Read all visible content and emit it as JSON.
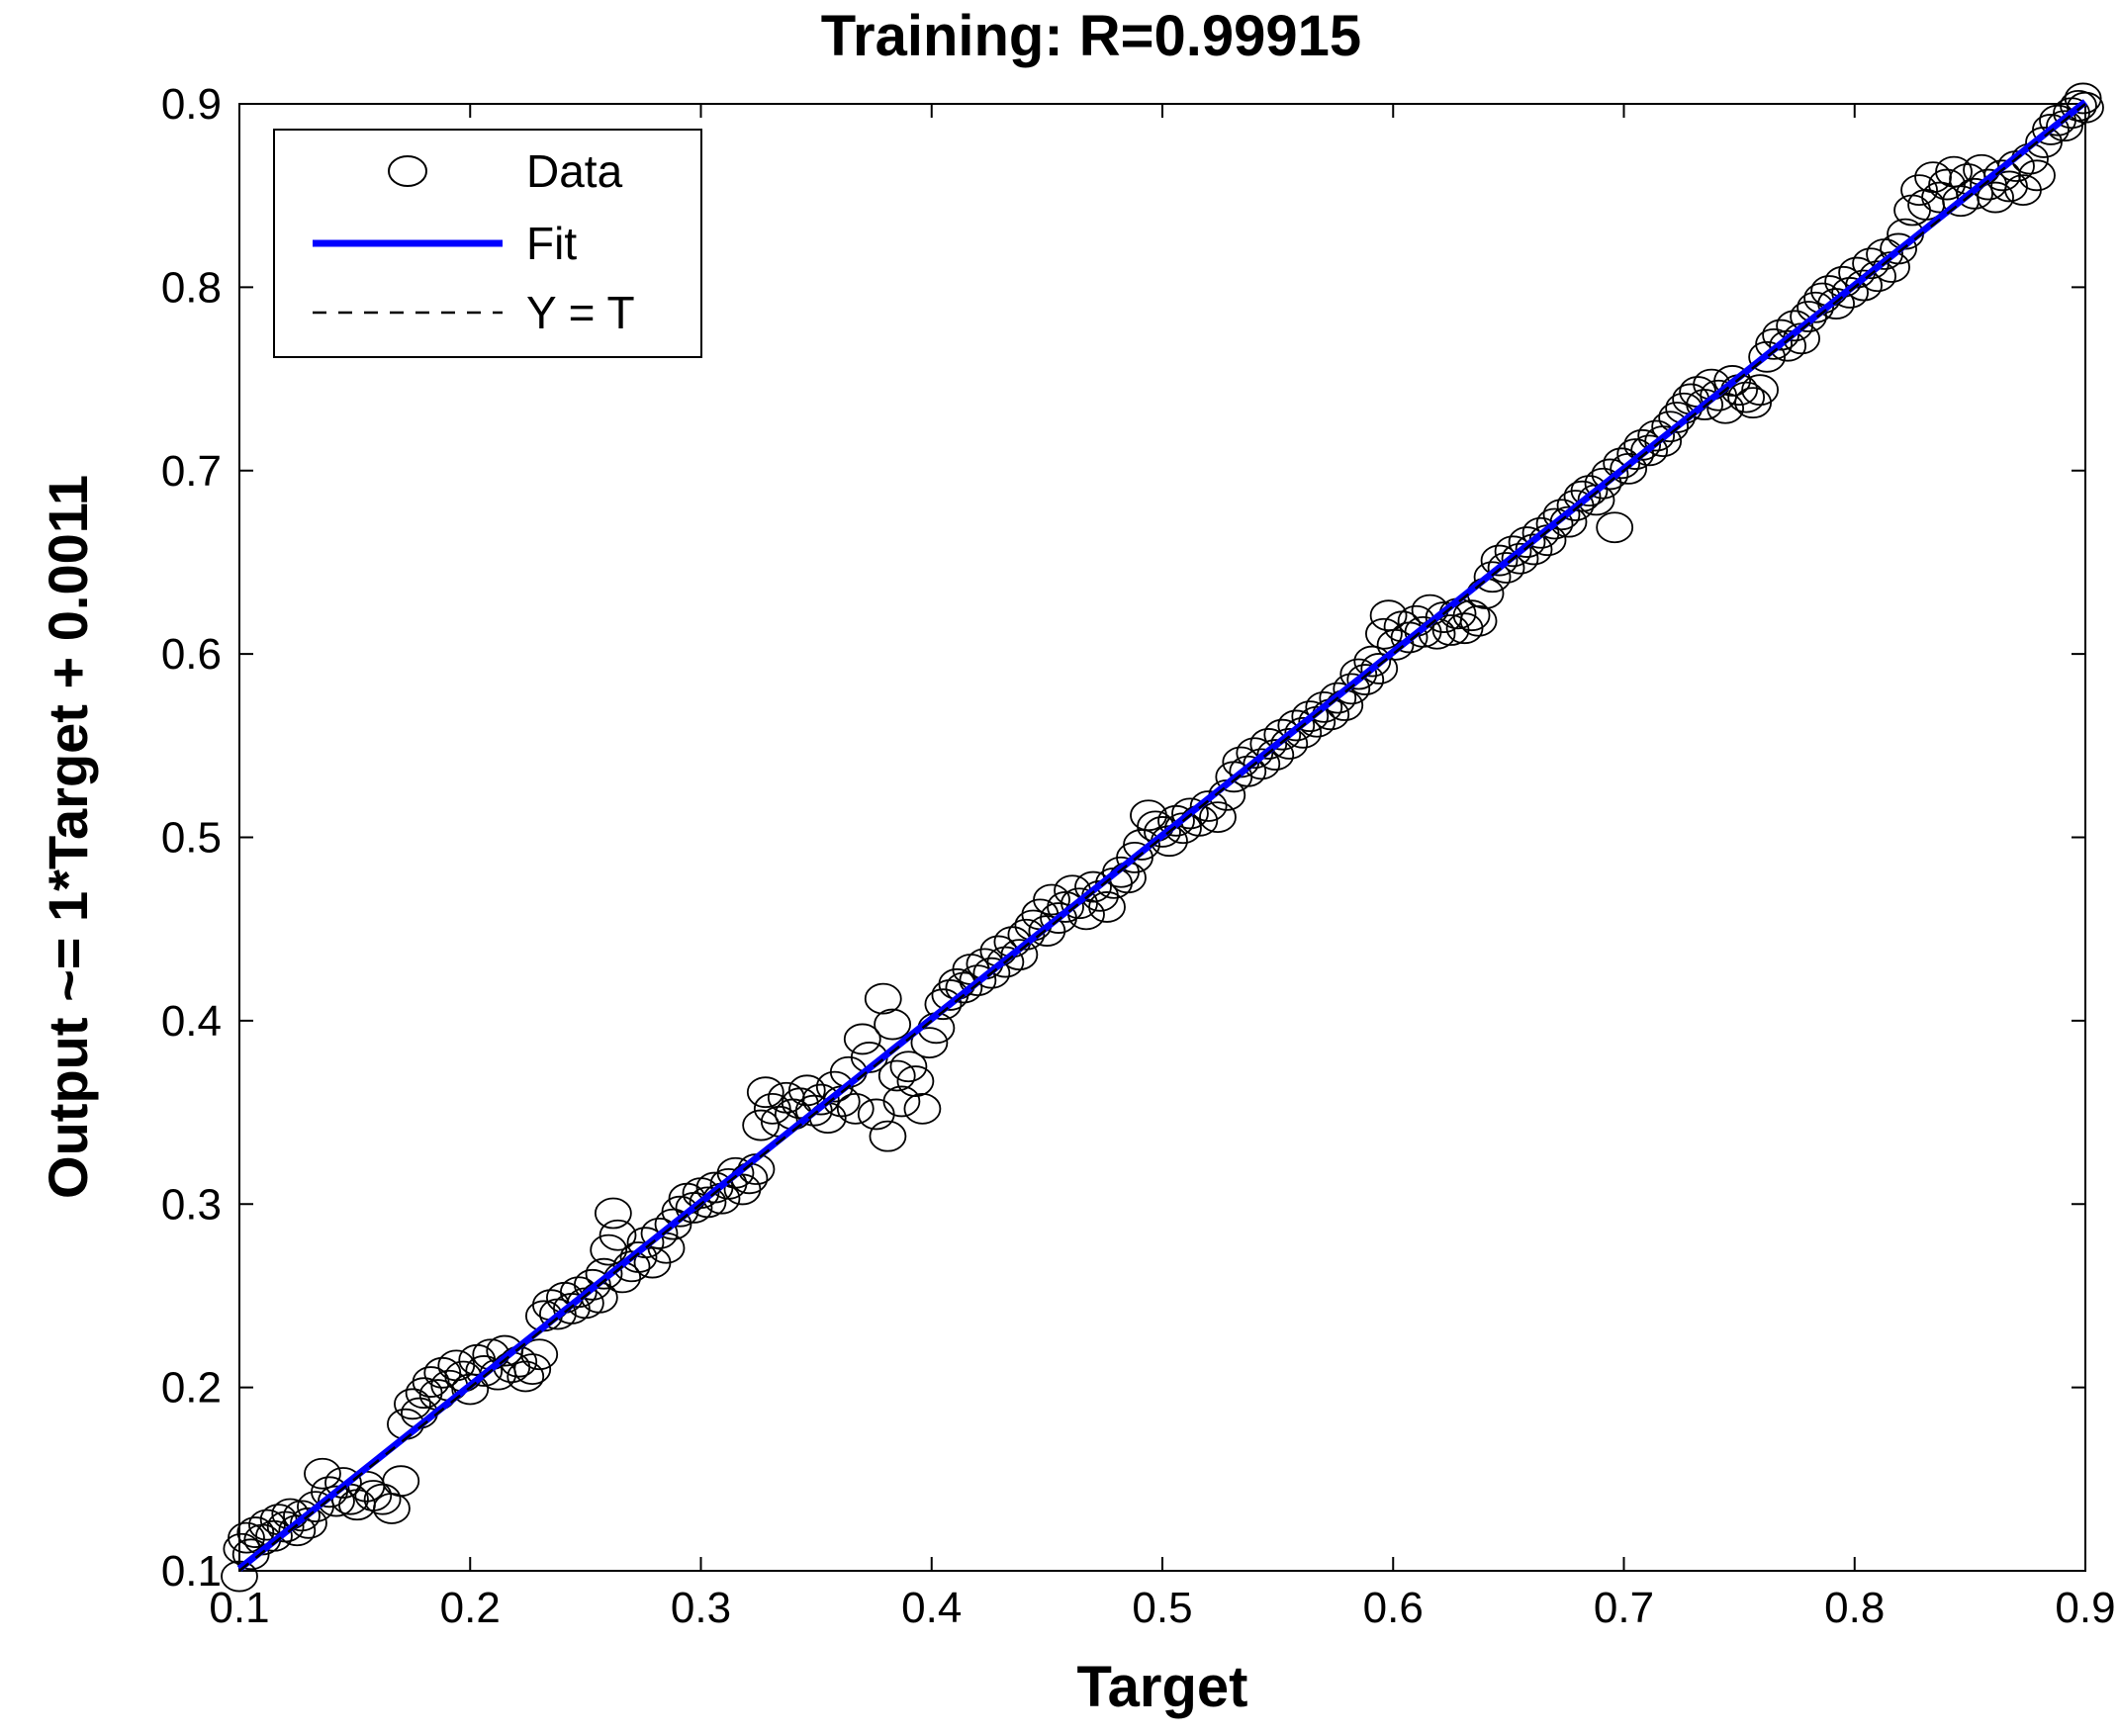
{
  "chart_data": {
    "type": "scatter",
    "title": "Training: R=0.99915",
    "xlabel": "Target",
    "ylabel": "Output ~= 1*Target + 0.0011",
    "xlim": [
      0.1,
      0.9
    ],
    "ylim": [
      0.1,
      0.9
    ],
    "x_ticks": [
      "0.1",
      "0.2",
      "0.3",
      "0.4",
      "0.5",
      "0.6",
      "0.7",
      "0.8",
      "0.9"
    ],
    "y_ticks": [
      "0.1",
      "0.2",
      "0.3",
      "0.4",
      "0.5",
      "0.6",
      "0.7",
      "0.8",
      "0.9"
    ],
    "grid": false,
    "legend": {
      "placement": "top-left",
      "entries": [
        {
          "label": "Data",
          "marker": "circle",
          "color": "#000000"
        },
        {
          "label": "Fit",
          "line": "solid",
          "color": "#0000ff"
        },
        {
          "label": "Y = T",
          "line": "dashed",
          "color": "#000000"
        }
      ]
    },
    "fit": {
      "slope": 1,
      "intercept": 0.0011,
      "color": "#0000ff"
    },
    "identity_line": {
      "color": "#000000",
      "style": "dashed"
    },
    "marker_color": "#000000",
    "series": [
      {
        "name": "Data",
        "points": [
          [
            0.1,
            0.097
          ],
          [
            0.101,
            0.112
          ],
          [
            0.103,
            0.118
          ],
          [
            0.105,
            0.109
          ],
          [
            0.107,
            0.121
          ],
          [
            0.11,
            0.117
          ],
          [
            0.112,
            0.125
          ],
          [
            0.115,
            0.119
          ],
          [
            0.117,
            0.128
          ],
          [
            0.12,
            0.124
          ],
          [
            0.122,
            0.131
          ],
          [
            0.125,
            0.122
          ],
          [
            0.127,
            0.13
          ],
          [
            0.13,
            0.126
          ],
          [
            0.133,
            0.135
          ],
          [
            0.136,
            0.153
          ],
          [
            0.139,
            0.143
          ],
          [
            0.142,
            0.138
          ],
          [
            0.145,
            0.148
          ],
          [
            0.148,
            0.139
          ],
          [
            0.151,
            0.136
          ],
          [
            0.155,
            0.146
          ],
          [
            0.158,
            0.141
          ],
          [
            0.162,
            0.139
          ],
          [
            0.166,
            0.134
          ],
          [
            0.17,
            0.149
          ],
          [
            0.172,
            0.18
          ],
          [
            0.175,
            0.191
          ],
          [
            0.178,
            0.186
          ],
          [
            0.18,
            0.197
          ],
          [
            0.183,
            0.203
          ],
          [
            0.186,
            0.196
          ],
          [
            0.188,
            0.208
          ],
          [
            0.191,
            0.201
          ],
          [
            0.194,
            0.212
          ],
          [
            0.197,
            0.206
          ],
          [
            0.2,
            0.199
          ],
          [
            0.203,
            0.215
          ],
          [
            0.206,
            0.209
          ],
          [
            0.209,
            0.218
          ],
          [
            0.212,
            0.207
          ],
          [
            0.215,
            0.22
          ],
          [
            0.218,
            0.211
          ],
          [
            0.221,
            0.214
          ],
          [
            0.224,
            0.206
          ],
          [
            0.227,
            0.21
          ],
          [
            0.23,
            0.218
          ],
          [
            0.232,
            0.239
          ],
          [
            0.235,
            0.245
          ],
          [
            0.238,
            0.24
          ],
          [
            0.241,
            0.249
          ],
          [
            0.244,
            0.243
          ],
          [
            0.247,
            0.252
          ],
          [
            0.25,
            0.246
          ],
          [
            0.253,
            0.256
          ],
          [
            0.256,
            0.249
          ],
          [
            0.258,
            0.262
          ],
          [
            0.26,
            0.275
          ],
          [
            0.262,
            0.295
          ],
          [
            0.264,
            0.283
          ],
          [
            0.266,
            0.26
          ],
          [
            0.27,
            0.266
          ],
          [
            0.273,
            0.271
          ],
          [
            0.276,
            0.279
          ],
          [
            0.279,
            0.268
          ],
          [
            0.282,
            0.284
          ],
          [
            0.285,
            0.276
          ],
          [
            0.288,
            0.289
          ],
          [
            0.291,
            0.296
          ],
          [
            0.294,
            0.303
          ],
          [
            0.297,
            0.298
          ],
          [
            0.3,
            0.306
          ],
          [
            0.303,
            0.301
          ],
          [
            0.306,
            0.309
          ],
          [
            0.309,
            0.303
          ],
          [
            0.312,
            0.311
          ],
          [
            0.315,
            0.317
          ],
          [
            0.318,
            0.308
          ],
          [
            0.321,
            0.314
          ],
          [
            0.324,
            0.319
          ],
          [
            0.326,
            0.343
          ],
          [
            0.328,
            0.361
          ],
          [
            0.331,
            0.352
          ],
          [
            0.334,
            0.345
          ],
          [
            0.337,
            0.358
          ],
          [
            0.34,
            0.349
          ],
          [
            0.343,
            0.355
          ],
          [
            0.346,
            0.362
          ],
          [
            0.349,
            0.351
          ],
          [
            0.352,
            0.357
          ],
          [
            0.355,
            0.347
          ],
          [
            0.358,
            0.364
          ],
          [
            0.361,
            0.356
          ],
          [
            0.364,
            0.372
          ],
          [
            0.367,
            0.352
          ],
          [
            0.37,
            0.39
          ],
          [
            0.373,
            0.38
          ],
          [
            0.376,
            0.349
          ],
          [
            0.379,
            0.412
          ],
          [
            0.381,
            0.337
          ],
          [
            0.383,
            0.398
          ],
          [
            0.385,
            0.37
          ],
          [
            0.387,
            0.356
          ],
          [
            0.39,
            0.375
          ],
          [
            0.393,
            0.367
          ],
          [
            0.396,
            0.352
          ],
          [
            0.399,
            0.388
          ],
          [
            0.402,
            0.396
          ],
          [
            0.405,
            0.409
          ],
          [
            0.408,
            0.414
          ],
          [
            0.411,
            0.42
          ],
          [
            0.414,
            0.418
          ],
          [
            0.417,
            0.428
          ],
          [
            0.42,
            0.422
          ],
          [
            0.423,
            0.431
          ],
          [
            0.426,
            0.426
          ],
          [
            0.429,
            0.438
          ],
          [
            0.432,
            0.432
          ],
          [
            0.435,
            0.443
          ],
          [
            0.438,
            0.436
          ],
          [
            0.441,
            0.447
          ],
          [
            0.444,
            0.452
          ],
          [
            0.447,
            0.458
          ],
          [
            0.45,
            0.449
          ],
          [
            0.452,
            0.466
          ],
          [
            0.455,
            0.456
          ],
          [
            0.458,
            0.462
          ],
          [
            0.461,
            0.471
          ],
          [
            0.464,
            0.464
          ],
          [
            0.467,
            0.458
          ],
          [
            0.47,
            0.473
          ],
          [
            0.473,
            0.468
          ],
          [
            0.476,
            0.462
          ],
          [
            0.479,
            0.475
          ],
          [
            0.482,
            0.481
          ],
          [
            0.485,
            0.478
          ],
          [
            0.488,
            0.489
          ],
          [
            0.491,
            0.496
          ],
          [
            0.494,
            0.512
          ],
          [
            0.497,
            0.506
          ],
          [
            0.5,
            0.503
          ],
          [
            0.503,
            0.498
          ],
          [
            0.506,
            0.509
          ],
          [
            0.509,
            0.505
          ],
          [
            0.512,
            0.513
          ],
          [
            0.516,
            0.509
          ],
          [
            0.52,
            0.517
          ],
          [
            0.524,
            0.511
          ],
          [
            0.528,
            0.523
          ],
          [
            0.531,
            0.533
          ],
          [
            0.534,
            0.541
          ],
          [
            0.537,
            0.536
          ],
          [
            0.54,
            0.546
          ],
          [
            0.543,
            0.54
          ],
          [
            0.546,
            0.551
          ],
          [
            0.549,
            0.545
          ],
          [
            0.552,
            0.556
          ],
          [
            0.555,
            0.551
          ],
          [
            0.558,
            0.561
          ],
          [
            0.561,
            0.557
          ],
          [
            0.564,
            0.566
          ],
          [
            0.567,
            0.563
          ],
          [
            0.57,
            0.571
          ],
          [
            0.573,
            0.567
          ],
          [
            0.576,
            0.576
          ],
          [
            0.579,
            0.572
          ],
          [
            0.582,
            0.581
          ],
          [
            0.585,
            0.589
          ],
          [
            0.588,
            0.586
          ],
          [
            0.591,
            0.596
          ],
          [
            0.594,
            0.592
          ],
          [
            0.596,
            0.611
          ],
          [
            0.598,
            0.621
          ],
          [
            0.601,
            0.605
          ],
          [
            0.604,
            0.615
          ],
          [
            0.607,
            0.609
          ],
          [
            0.61,
            0.618
          ],
          [
            0.613,
            0.612
          ],
          [
            0.616,
            0.624
          ],
          [
            0.619,
            0.611
          ],
          [
            0.622,
            0.62
          ],
          [
            0.625,
            0.613
          ],
          [
            0.628,
            0.622
          ],
          [
            0.631,
            0.614
          ],
          [
            0.634,
            0.621
          ],
          [
            0.637,
            0.618
          ],
          [
            0.64,
            0.633
          ],
          [
            0.643,
            0.642
          ],
          [
            0.646,
            0.651
          ],
          [
            0.649,
            0.647
          ],
          [
            0.652,
            0.656
          ],
          [
            0.655,
            0.652
          ],
          [
            0.658,
            0.661
          ],
          [
            0.661,
            0.657
          ],
          [
            0.664,
            0.666
          ],
          [
            0.667,
            0.662
          ],
          [
            0.67,
            0.671
          ],
          [
            0.673,
            0.676
          ],
          [
            0.676,
            0.672
          ],
          [
            0.679,
            0.681
          ],
          [
            0.682,
            0.686
          ],
          [
            0.685,
            0.689
          ],
          [
            0.688,
            0.684
          ],
          [
            0.691,
            0.693
          ],
          [
            0.694,
            0.698
          ],
          [
            0.696,
            0.669
          ],
          [
            0.699,
            0.704
          ],
          [
            0.702,
            0.701
          ],
          [
            0.705,
            0.709
          ],
          [
            0.708,
            0.714
          ],
          [
            0.711,
            0.711
          ],
          [
            0.714,
            0.719
          ],
          [
            0.717,
            0.716
          ],
          [
            0.72,
            0.724
          ],
          [
            0.723,
            0.729
          ],
          [
            0.726,
            0.734
          ],
          [
            0.729,
            0.739
          ],
          [
            0.732,
            0.743
          ],
          [
            0.735,
            0.736
          ],
          [
            0.738,
            0.747
          ],
          [
            0.741,
            0.741
          ],
          [
            0.744,
            0.734
          ],
          [
            0.747,
            0.749
          ],
          [
            0.75,
            0.744
          ],
          [
            0.753,
            0.74
          ],
          [
            0.756,
            0.737
          ],
          [
            0.759,
            0.744
          ],
          [
            0.762,
            0.762
          ],
          [
            0.765,
            0.769
          ],
          [
            0.768,
            0.774
          ],
          [
            0.771,
            0.768
          ],
          [
            0.774,
            0.779
          ],
          [
            0.777,
            0.772
          ],
          [
            0.78,
            0.784
          ],
          [
            0.783,
            0.789
          ],
          [
            0.786,
            0.794
          ],
          [
            0.789,
            0.798
          ],
          [
            0.792,
            0.791
          ],
          [
            0.795,
            0.803
          ],
          [
            0.798,
            0.797
          ],
          [
            0.801,
            0.808
          ],
          [
            0.804,
            0.801
          ],
          [
            0.807,
            0.813
          ],
          [
            0.81,
            0.806
          ],
          [
            0.813,
            0.818
          ],
          [
            0.816,
            0.811
          ],
          [
            0.819,
            0.821
          ],
          [
            0.822,
            0.829
          ],
          [
            0.825,
            0.842
          ],
          [
            0.828,
            0.853
          ],
          [
            0.831,
            0.845
          ],
          [
            0.834,
            0.86
          ],
          [
            0.837,
            0.849
          ],
          [
            0.84,
            0.856
          ],
          [
            0.843,
            0.863
          ],
          [
            0.846,
            0.847
          ],
          [
            0.849,
            0.859
          ],
          [
            0.852,
            0.851
          ],
          [
            0.855,
            0.864
          ],
          [
            0.858,
            0.856
          ],
          [
            0.861,
            0.849
          ],
          [
            0.864,
            0.861
          ],
          [
            0.867,
            0.855
          ],
          [
            0.87,
            0.866
          ],
          [
            0.873,
            0.853
          ],
          [
            0.876,
            0.87
          ],
          [
            0.879,
            0.861
          ],
          [
            0.882,
            0.879
          ],
          [
            0.885,
            0.886
          ],
          [
            0.888,
            0.891
          ],
          [
            0.891,
            0.888
          ],
          [
            0.894,
            0.895
          ],
          [
            0.897,
            0.899
          ],
          [
            0.899,
            0.903
          ],
          [
            0.9,
            0.898
          ]
        ]
      }
    ]
  }
}
